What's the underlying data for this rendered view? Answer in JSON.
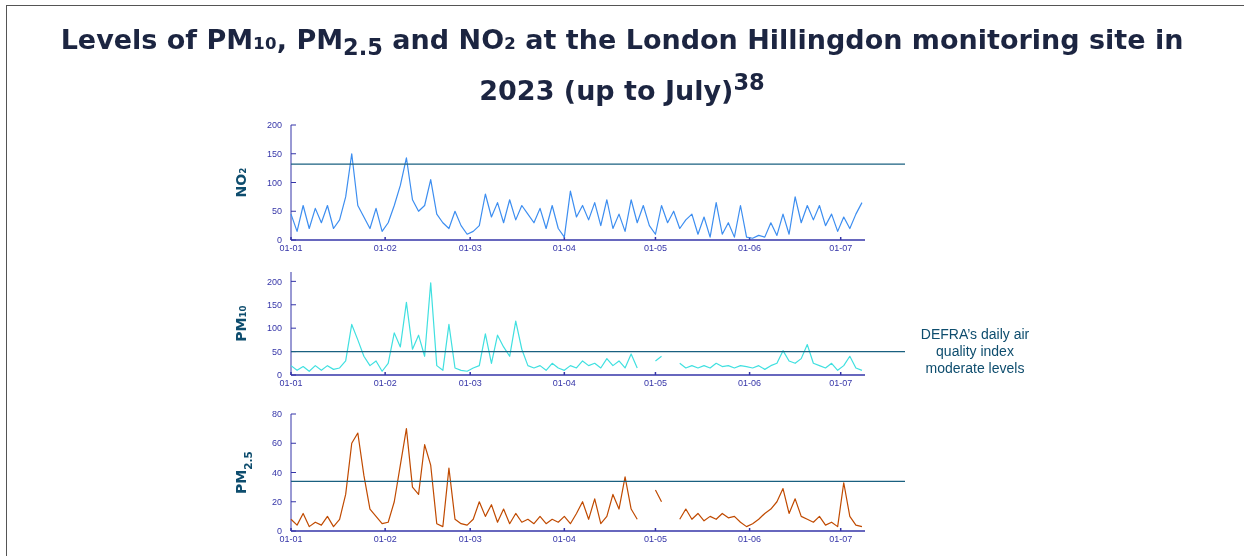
{
  "chart_data": [
    {
      "type": "line",
      "title": "Levels of PM₁₀, PM$_{2.5}$ and NO₂ at the London Hillingdon monitoring site in 2023 (up to July)$^{38}$",
      "ylabel": "NO₂",
      "x": [
        "2023-01-01",
        "2023-01-03",
        "2023-01-05",
        "2023-01-07",
        "2023-01-09",
        "2023-01-11",
        "2023-01-13",
        "2023-01-15",
        "2023-01-17",
        "2023-01-19",
        "2023-01-21",
        "2023-01-23",
        "2023-01-25",
        "2023-01-27",
        "2023-01-29",
        "2023-01-31",
        "2023-02-02",
        "2023-02-04",
        "2023-02-06",
        "2023-02-08",
        "2023-02-10",
        "2023-02-12",
        "2023-02-14",
        "2023-02-16",
        "2023-02-18",
        "2023-02-20",
        "2023-02-22",
        "2023-02-24",
        "2023-02-26",
        "2023-02-28",
        "2023-03-02",
        "2023-03-04",
        "2023-03-06",
        "2023-03-08",
        "2023-03-10",
        "2023-03-12",
        "2023-03-14",
        "2023-03-16",
        "2023-03-18",
        "2023-03-20",
        "2023-03-22",
        "2023-03-24",
        "2023-03-26",
        "2023-03-28",
        "2023-03-30",
        "2023-04-01",
        "2023-04-03",
        "2023-04-05",
        "2023-04-07",
        "2023-04-09",
        "2023-04-11",
        "2023-04-13",
        "2023-04-15",
        "2023-04-17",
        "2023-04-19",
        "2023-04-21",
        "2023-04-23",
        "2023-04-25",
        "2023-04-27",
        "2023-04-29",
        "2023-05-01",
        "2023-05-03",
        "2023-05-05",
        "2023-05-07",
        "2023-05-09",
        "2023-05-11",
        "2023-05-13",
        "2023-05-15",
        "2023-05-17",
        "2023-05-19",
        "2023-05-21",
        "2023-05-23",
        "2023-05-25",
        "2023-05-27",
        "2023-05-29",
        "2023-05-31",
        "2023-06-02",
        "2023-06-04",
        "2023-06-06",
        "2023-06-08",
        "2023-06-10",
        "2023-06-12",
        "2023-06-14",
        "2023-06-16",
        "2023-06-18",
        "2023-06-20",
        "2023-06-22",
        "2023-06-24",
        "2023-06-26",
        "2023-06-28",
        "2023-06-30",
        "2023-07-02",
        "2023-07-04",
        "2023-07-06",
        "2023-07-08"
      ],
      "series": [
        {
          "color": "#3d8ef0",
          "values": [
            45,
            15,
            60,
            20,
            55,
            30,
            60,
            20,
            35,
            75,
            150,
            60,
            40,
            20,
            55,
            15,
            30,
            60,
            95,
            143,
            70,
            50,
            60,
            105,
            45,
            30,
            20,
            50,
            25,
            10,
            15,
            25,
            80,
            40,
            65,
            30,
            70,
            35,
            60,
            45,
            30,
            55,
            20,
            60,
            20,
            5,
            85,
            40,
            60,
            35,
            65,
            25,
            70,
            20,
            45,
            15,
            70,
            30,
            60,
            25,
            10,
            60,
            30,
            50,
            20,
            35,
            45,
            10,
            40,
            5,
            65,
            10,
            30,
            5,
            60,
            5,
            3,
            8,
            5,
            30,
            8,
            45,
            10,
            75,
            30,
            60,
            35,
            60,
            25,
            45,
            15,
            40,
            20,
            45,
            65
          ]
        }
      ],
      "xlim": [
        "2023-01-01",
        "2023-07-09"
      ],
      "xticks": [
        {
          "value": "2023-01-01",
          "label": "01-01"
        },
        {
          "value": "2023-02-01",
          "label": "01-02"
        },
        {
          "value": "2023-03-01",
          "label": "01-03"
        },
        {
          "value": "2023-04-01",
          "label": "01-04"
        },
        {
          "value": "2023-05-01",
          "label": "01-05"
        },
        {
          "value": "2023-06-01",
          "label": "01-06"
        },
        {
          "value": "2023-07-01",
          "label": "01-07"
        }
      ],
      "ylim": [
        0,
        200
      ],
      "yticks": [
        0,
        50,
        100,
        150,
        200
      ],
      "ref_lines": [
        {
          "axis": "y",
          "value": 132,
          "color": "#1a6080"
        }
      ]
    },
    {
      "type": "line",
      "ylabel": "PM₁₀",
      "x": [
        "2023-01-01",
        "2023-01-03",
        "2023-01-05",
        "2023-01-07",
        "2023-01-09",
        "2023-01-11",
        "2023-01-13",
        "2023-01-15",
        "2023-01-17",
        "2023-01-19",
        "2023-01-21",
        "2023-01-23",
        "2023-01-25",
        "2023-01-27",
        "2023-01-29",
        "2023-01-31",
        "2023-02-02",
        "2023-02-04",
        "2023-02-06",
        "2023-02-08",
        "2023-02-10",
        "2023-02-12",
        "2023-02-14",
        "2023-02-16",
        "2023-02-18",
        "2023-02-20",
        "2023-02-22",
        "2023-02-24",
        "2023-02-26",
        "2023-02-28",
        "2023-03-02",
        "2023-03-04",
        "2023-03-06",
        "2023-03-08",
        "2023-03-10",
        "2023-03-12",
        "2023-03-14",
        "2023-03-16",
        "2023-03-18",
        "2023-03-20",
        "2023-03-22",
        "2023-03-24",
        "2023-03-26",
        "2023-03-28",
        "2023-03-30",
        "2023-04-01",
        "2023-04-03",
        "2023-04-05",
        "2023-04-07",
        "2023-04-09",
        "2023-04-11",
        "2023-04-13",
        "2023-04-15",
        "2023-04-17",
        "2023-04-19",
        "2023-04-21",
        "2023-04-23",
        "2023-04-25",
        "2023-04-27",
        "2023-04-29",
        "2023-05-01",
        "2023-05-03",
        "2023-05-05",
        "2023-05-07",
        "2023-05-09",
        "2023-05-11",
        "2023-05-13",
        "2023-05-15",
        "2023-05-17",
        "2023-05-19",
        "2023-05-21",
        "2023-05-23",
        "2023-05-25",
        "2023-05-27",
        "2023-05-29",
        "2023-05-31",
        "2023-06-02",
        "2023-06-04",
        "2023-06-06",
        "2023-06-08",
        "2023-06-10",
        "2023-06-12",
        "2023-06-14",
        "2023-06-16",
        "2023-06-18",
        "2023-06-20",
        "2023-06-22",
        "2023-06-24",
        "2023-06-26",
        "2023-06-28",
        "2023-06-30",
        "2023-07-02",
        "2023-07-04",
        "2023-07-06",
        "2023-07-08"
      ],
      "series": [
        {
          "color": "#40e0e0",
          "values": [
            20,
            10,
            18,
            8,
            20,
            10,
            20,
            12,
            15,
            30,
            108,
            75,
            40,
            20,
            30,
            8,
            25,
            90,
            60,
            155,
            55,
            85,
            40,
            197,
            20,
            10,
            108,
            15,
            10,
            8,
            15,
            20,
            88,
            25,
            85,
            60,
            40,
            115,
            55,
            20,
            15,
            20,
            10,
            25,
            15,
            10,
            20,
            15,
            30,
            20,
            25,
            15,
            35,
            20,
            30,
            15,
            45,
            15,
            null,
            null,
            30,
            40,
            null,
            null,
            25,
            15,
            20,
            15,
            20,
            15,
            25,
            18,
            20,
            15,
            20,
            18,
            15,
            20,
            12,
            20,
            25,
            52,
            30,
            25,
            35,
            65,
            25,
            20,
            15,
            25,
            10,
            20,
            40,
            15,
            10
          ]
        }
      ],
      "xlim": [
        "2023-01-01",
        "2023-07-09"
      ],
      "xticks": [
        {
          "value": "2023-01-01",
          "label": "01-01"
        },
        {
          "value": "2023-02-01",
          "label": "01-02"
        },
        {
          "value": "2023-03-01",
          "label": "01-03"
        },
        {
          "value": "2023-04-01",
          "label": "01-04"
        },
        {
          "value": "2023-05-01",
          "label": "01-05"
        },
        {
          "value": "2023-06-01",
          "label": "01-06"
        },
        {
          "value": "2023-07-01",
          "label": "01-07"
        }
      ],
      "ylim": [
        0,
        220
      ],
      "yticks": [
        0,
        50,
        100,
        150,
        200
      ],
      "ref_lines": [
        {
          "axis": "y",
          "value": 50,
          "color": "#1a6080",
          "label": "DEFRA’s daily air quality index moderate levels"
        }
      ]
    },
    {
      "type": "line",
      "ylabel": "PM$_{2.5}$",
      "x": [
        "2023-01-01",
        "2023-01-03",
        "2023-01-05",
        "2023-01-07",
        "2023-01-09",
        "2023-01-11",
        "2023-01-13",
        "2023-01-15",
        "2023-01-17",
        "2023-01-19",
        "2023-01-21",
        "2023-01-23",
        "2023-01-25",
        "2023-01-27",
        "2023-01-29",
        "2023-01-31",
        "2023-02-02",
        "2023-02-04",
        "2023-02-06",
        "2023-02-08",
        "2023-02-10",
        "2023-02-12",
        "2023-02-14",
        "2023-02-16",
        "2023-02-18",
        "2023-02-20",
        "2023-02-22",
        "2023-02-24",
        "2023-02-26",
        "2023-02-28",
        "2023-03-02",
        "2023-03-04",
        "2023-03-06",
        "2023-03-08",
        "2023-03-10",
        "2023-03-12",
        "2023-03-14",
        "2023-03-16",
        "2023-03-18",
        "2023-03-20",
        "2023-03-22",
        "2023-03-24",
        "2023-03-26",
        "2023-03-28",
        "2023-03-30",
        "2023-04-01",
        "2023-04-03",
        "2023-04-05",
        "2023-04-07",
        "2023-04-09",
        "2023-04-11",
        "2023-04-13",
        "2023-04-15",
        "2023-04-17",
        "2023-04-19",
        "2023-04-21",
        "2023-04-23",
        "2023-04-25",
        "2023-04-27",
        "2023-04-29",
        "2023-05-01",
        "2023-05-03",
        "2023-05-05",
        "2023-05-07",
        "2023-05-09",
        "2023-05-11",
        "2023-05-13",
        "2023-05-15",
        "2023-05-17",
        "2023-05-19",
        "2023-05-21",
        "2023-05-23",
        "2023-05-25",
        "2023-05-27",
        "2023-05-29",
        "2023-05-31",
        "2023-06-02",
        "2023-06-04",
        "2023-06-06",
        "2023-06-08",
        "2023-06-10",
        "2023-06-12",
        "2023-06-14",
        "2023-06-16",
        "2023-06-18",
        "2023-06-20",
        "2023-06-22",
        "2023-06-24",
        "2023-06-26",
        "2023-06-28",
        "2023-06-30",
        "2023-07-02",
        "2023-07-04",
        "2023-07-06",
        "2023-07-08"
      ],
      "series": [
        {
          "color": "#c04a00",
          "values": [
            8,
            4,
            12,
            3,
            6,
            4,
            10,
            3,
            8,
            25,
            60,
            67,
            38,
            15,
            10,
            5,
            6,
            20,
            45,
            70,
            30,
            25,
            59,
            45,
            5,
            3,
            43,
            8,
            5,
            4,
            8,
            20,
            10,
            18,
            6,
            15,
            5,
            12,
            6,
            8,
            5,
            10,
            5,
            8,
            6,
            10,
            5,
            12,
            20,
            8,
            22,
            5,
            10,
            25,
            15,
            37,
            15,
            8,
            null,
            null,
            28,
            20,
            null,
            null,
            8,
            15,
            8,
            12,
            7,
            10,
            8,
            12,
            9,
            10,
            6,
            3,
            5,
            8,
            12,
            15,
            20,
            29,
            12,
            22,
            10,
            8,
            6,
            10,
            4,
            6,
            3,
            33,
            10,
            4,
            3
          ]
        }
      ],
      "xlim": [
        "2023-01-01",
        "2023-07-09"
      ],
      "xticks": [
        {
          "value": "2023-01-01",
          "label": "01-01"
        },
        {
          "value": "2023-02-01",
          "label": "01-02"
        },
        {
          "value": "2023-03-01",
          "label": "01-03"
        },
        {
          "value": "2023-04-01",
          "label": "01-04"
        },
        {
          "value": "2023-05-01",
          "label": "01-05"
        },
        {
          "value": "2023-06-01",
          "label": "01-06"
        },
        {
          "value": "2023-07-01",
          "label": "01-07"
        }
      ],
      "ylim": [
        0,
        80
      ],
      "yticks": [
        0,
        20,
        40,
        60,
        80
      ],
      "ref_lines": [
        {
          "axis": "y",
          "value": 34,
          "color": "#1a6080"
        }
      ]
    }
  ]
}
